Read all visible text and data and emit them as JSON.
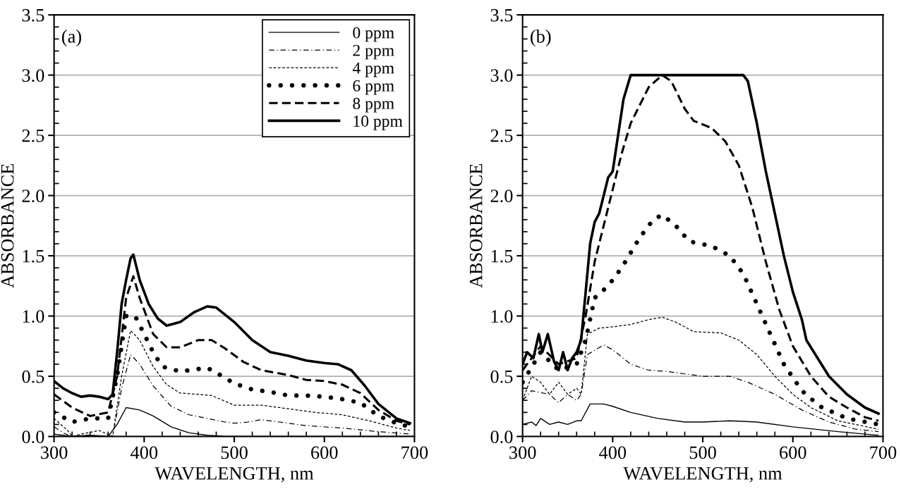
{
  "chart_data": [
    {
      "type": "line",
      "xlabel": "WAVELENGTH, nm",
      "ylabel": "ABSORBANCE",
      "annotations": [
        "(a)"
      ],
      "xlim": [
        300,
        700
      ],
      "xticks": [
        300,
        400,
        500,
        600,
        700
      ],
      "ylim": [
        0,
        3.5
      ],
      "yticks": [
        {
          "value": 0,
          "label": "0.0"
        },
        {
          "value": 0.5,
          "label": "0.5"
        },
        {
          "value": 1,
          "label": "1.0"
        },
        {
          "value": 1.5,
          "label": "1.5"
        },
        {
          "value": 2,
          "label": "2.0"
        },
        {
          "value": 2.5,
          "label": "2.5"
        },
        {
          "value": 3,
          "label": "3.0"
        },
        {
          "value": 3.5,
          "label": "3.5"
        }
      ],
      "grid": "y",
      "legend": "top right",
      "series": [
        {
          "name": "0 ppm",
          "color": "#000000",
          "line_style": "solid",
          "x": [
            300,
            320,
            340,
            360,
            370,
            380,
            395,
            410,
            430,
            450,
            470,
            490,
            520,
            600,
            700
          ],
          "values": [
            0.02,
            0.0,
            0.01,
            0.0,
            0.1,
            0.24,
            0.22,
            0.17,
            0.08,
            0.03,
            0.01,
            0.0,
            0.0,
            0.0,
            0.0
          ]
        },
        {
          "name": "2 ppm",
          "color": "#000000",
          "line_style": "dashdot",
          "x": [
            300,
            310,
            320,
            340,
            365,
            375,
            385,
            395,
            410,
            430,
            450,
            470,
            490,
            500,
            515,
            530,
            550,
            580,
            620,
            660,
            695
          ],
          "values": [
            0.08,
            0.03,
            0.0,
            0.01,
            0.0,
            0.4,
            0.68,
            0.6,
            0.42,
            0.25,
            0.18,
            0.15,
            0.12,
            0.11,
            0.12,
            0.14,
            0.12,
            0.09,
            0.07,
            0.04,
            0.02
          ]
        },
        {
          "name": "4 ppm",
          "color": "#000000",
          "line_style": "dashed",
          "x": [
            300,
            315,
            320,
            330,
            350,
            365,
            375,
            385,
            395,
            410,
            425,
            440,
            460,
            475,
            500,
            530,
            560,
            590,
            620,
            650,
            680,
            695
          ],
          "values": [
            0.15,
            0.05,
            0.0,
            0.02,
            0.05,
            0.0,
            0.5,
            0.88,
            0.8,
            0.58,
            0.43,
            0.36,
            0.35,
            0.34,
            0.26,
            0.26,
            0.23,
            0.2,
            0.18,
            0.13,
            0.07,
            0.05
          ]
        },
        {
          "name": "6 ppm",
          "color": "#000000",
          "line_style": "dotted",
          "x": [
            300,
            320,
            340,
            360,
            370,
            380,
            390,
            400,
            410,
            420,
            440,
            460,
            470,
            480,
            500,
            520,
            540,
            560,
            580,
            600,
            620,
            640,
            660,
            680,
            695
          ],
          "values": [
            0.2,
            0.12,
            0.15,
            0.15,
            0.5,
            1.0,
            1.0,
            0.85,
            0.7,
            0.58,
            0.54,
            0.56,
            0.57,
            0.53,
            0.44,
            0.39,
            0.37,
            0.34,
            0.34,
            0.33,
            0.31,
            0.28,
            0.17,
            0.11,
            0.08
          ]
        },
        {
          "name": "8 ppm",
          "color": "#000000",
          "line_style": "dashed",
          "x": [
            300,
            320,
            340,
            360,
            370,
            380,
            388,
            395,
            410,
            425,
            440,
            460,
            475,
            490,
            510,
            530,
            560,
            580,
            600,
            620,
            640,
            660,
            680,
            695
          ],
          "values": [
            0.35,
            0.24,
            0.17,
            0.2,
            0.5,
            1.15,
            1.33,
            1.15,
            0.85,
            0.74,
            0.74,
            0.8,
            0.8,
            0.73,
            0.62,
            0.55,
            0.51,
            0.47,
            0.46,
            0.43,
            0.36,
            0.22,
            0.13,
            0.1
          ]
        },
        {
          "name": "10 ppm",
          "color": "#000000",
          "line_style": "solid",
          "x": [
            300,
            310,
            320,
            330,
            340,
            350,
            360,
            365,
            370,
            375,
            380,
            385,
            388,
            395,
            405,
            415,
            425,
            440,
            455,
            470,
            480,
            500,
            520,
            540,
            560,
            580,
            600,
            615,
            630,
            645,
            660,
            680,
            695
          ],
          "values": [
            0.46,
            0.4,
            0.36,
            0.33,
            0.34,
            0.33,
            0.31,
            0.35,
            0.7,
            1.1,
            1.3,
            1.48,
            1.51,
            1.3,
            1.1,
            0.98,
            0.92,
            0.95,
            1.03,
            1.08,
            1.07,
            0.95,
            0.8,
            0.7,
            0.67,
            0.63,
            0.61,
            0.6,
            0.55,
            0.42,
            0.27,
            0.15,
            0.11
          ]
        }
      ]
    },
    {
      "type": "line",
      "xlabel": "WAVELENGTH, nm",
      "ylabel": "ABSORBANCE",
      "annotations": [
        "(b)"
      ],
      "xlim": [
        300,
        700
      ],
      "xticks": [
        300,
        400,
        500,
        600,
        700
      ],
      "ylim": [
        0,
        3.5
      ],
      "yticks": [
        {
          "value": 0,
          "label": "0.0"
        },
        {
          "value": 0.5,
          "label": "0.5"
        },
        {
          "value": 1,
          "label": "1.0"
        },
        {
          "value": 1.5,
          "label": "1.5"
        },
        {
          "value": 2,
          "label": "2.0"
        },
        {
          "value": 2.5,
          "label": "2.5"
        },
        {
          "value": 3,
          "label": "3.0"
        },
        {
          "value": 3.5,
          "label": "3.5"
        }
      ],
      "grid": "y",
      "series": [
        {
          "color": "#000000",
          "line_style": "solid",
          "x": [
            300,
            310,
            315,
            320,
            330,
            340,
            350,
            360,
            365,
            375,
            390,
            400,
            420,
            450,
            480,
            500,
            530,
            560,
            600,
            650,
            695
          ],
          "values": [
            0.1,
            0.12,
            0.09,
            0.15,
            0.1,
            0.12,
            0.1,
            0.13,
            0.13,
            0.27,
            0.27,
            0.25,
            0.2,
            0.15,
            0.12,
            0.12,
            0.13,
            0.12,
            0.08,
            0.04,
            0.01
          ]
        },
        {
          "color": "#000000",
          "line_style": "dashdot",
          "x": [
            300,
            310,
            330,
            340,
            350,
            360,
            365,
            372,
            390,
            400,
            420,
            440,
            460,
            500,
            530,
            550,
            580,
            610,
            640,
            670,
            695
          ],
          "values": [
            0.3,
            0.38,
            0.35,
            0.28,
            0.35,
            0.3,
            0.35,
            0.68,
            0.76,
            0.72,
            0.6,
            0.55,
            0.54,
            0.5,
            0.5,
            0.45,
            0.35,
            0.22,
            0.12,
            0.06,
            0.04
          ]
        },
        {
          "color": "#000000",
          "line_style": "dashed",
          "x": [
            300,
            310,
            320,
            330,
            340,
            350,
            360,
            365,
            372,
            385,
            400,
            420,
            440,
            455,
            470,
            490,
            520,
            540,
            560,
            580,
            600,
            620,
            650,
            695
          ],
          "values": [
            0.3,
            0.5,
            0.45,
            0.35,
            0.45,
            0.35,
            0.4,
            0.35,
            0.85,
            0.9,
            0.91,
            0.93,
            0.97,
            0.99,
            0.95,
            0.87,
            0.86,
            0.8,
            0.68,
            0.5,
            0.35,
            0.24,
            0.13,
            0.06
          ]
        },
        {
          "color": "#000000",
          "line_style": "dotted",
          "x": [
            300,
            320,
            340,
            360,
            370,
            380,
            395,
            410,
            430,
            445,
            455,
            470,
            485,
            510,
            530,
            545,
            560,
            575,
            590,
            610,
            630,
            660,
            695
          ],
          "values": [
            0.45,
            0.7,
            0.55,
            0.6,
            0.8,
            1.15,
            1.25,
            1.4,
            1.65,
            1.8,
            1.84,
            1.75,
            1.62,
            1.58,
            1.5,
            1.35,
            1.1,
            0.85,
            0.6,
            0.38,
            0.25,
            0.15,
            0.1
          ]
        },
        {
          "color": "#000000",
          "line_style": "dashed",
          "x": [
            300,
            320,
            340,
            360,
            370,
            380,
            390,
            400,
            410,
            420,
            440,
            455,
            465,
            480,
            490,
            510,
            525,
            540,
            555,
            570,
            585,
            600,
            620,
            640,
            660,
            680,
            695
          ],
          "values": [
            0.55,
            0.75,
            0.6,
            0.65,
            1.0,
            1.45,
            1.75,
            2.05,
            2.35,
            2.6,
            2.9,
            3.0,
            2.95,
            2.72,
            2.62,
            2.56,
            2.45,
            2.25,
            1.9,
            1.45,
            1.05,
            0.75,
            0.5,
            0.33,
            0.24,
            0.16,
            0.13
          ]
        },
        {
          "color": "#000000",
          "line_style": "solid",
          "x": [
            300,
            305,
            312,
            318,
            322,
            328,
            335,
            340,
            345,
            350,
            355,
            360,
            365,
            370,
            375,
            380,
            385,
            390,
            395,
            400,
            405,
            412,
            420,
            545,
            550,
            560,
            570,
            580,
            590,
            600,
            610,
            615,
            640,
            660,
            680,
            695
          ],
          "values": [
            0.6,
            0.7,
            0.65,
            0.85,
            0.7,
            0.85,
            0.62,
            0.55,
            0.7,
            0.55,
            0.65,
            0.7,
            0.8,
            1.2,
            1.6,
            1.78,
            1.85,
            2.0,
            2.15,
            2.2,
            2.45,
            2.8,
            3.0,
            3.0,
            2.95,
            2.6,
            2.2,
            1.85,
            1.5,
            1.2,
            0.97,
            0.8,
            0.5,
            0.35,
            0.24,
            0.19
          ]
        }
      ]
    }
  ]
}
